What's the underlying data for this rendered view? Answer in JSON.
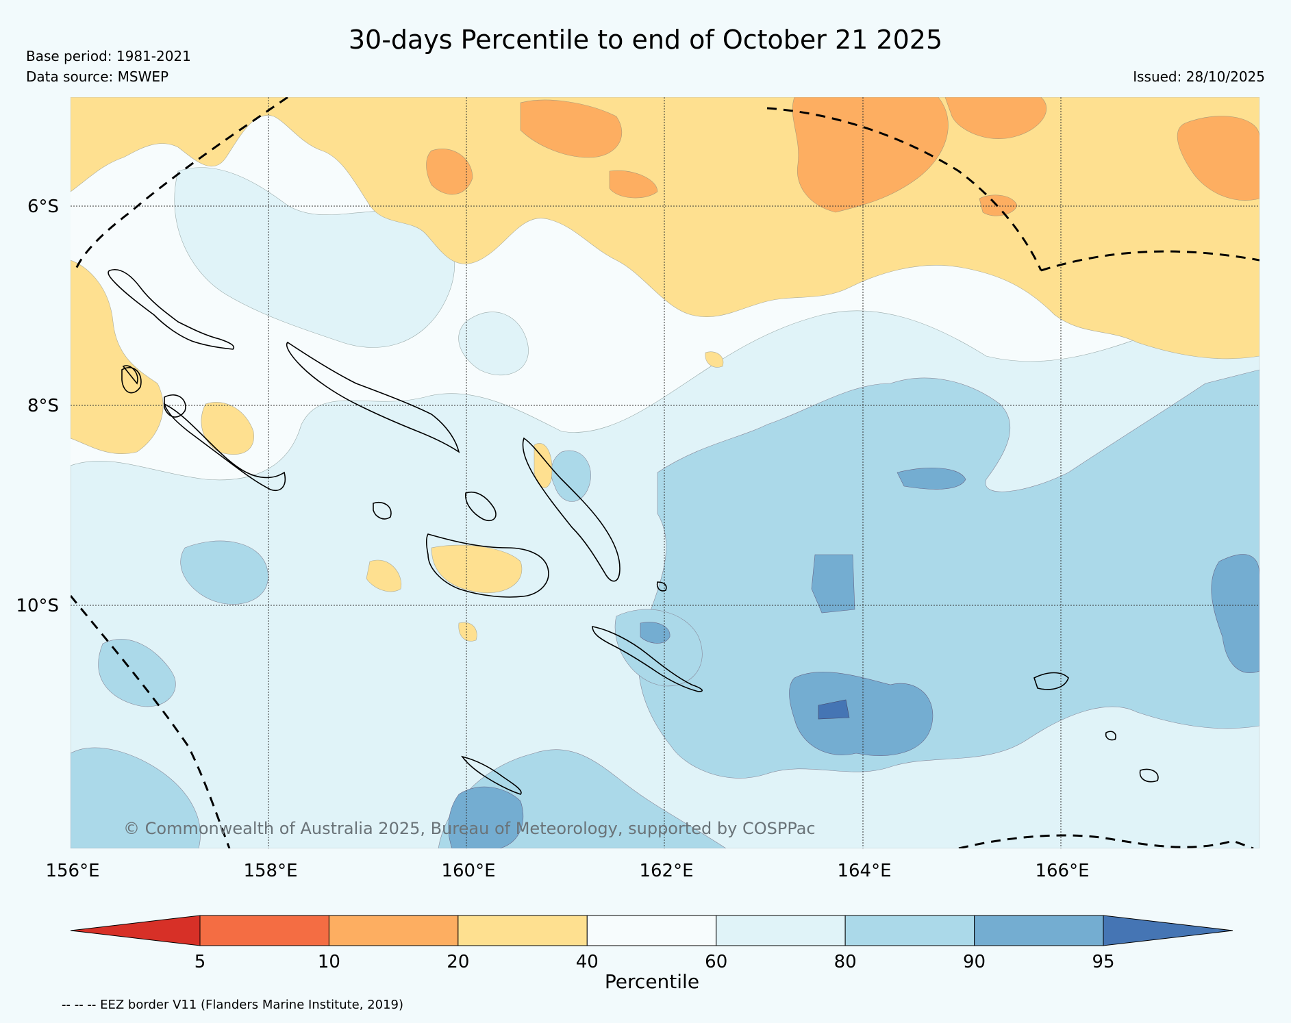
{
  "title": "30-days Percentile to end of October 21 2025",
  "base_period": "Base period: 1981-2021",
  "data_source": "Data source: MSWEP",
  "issued": "Issued: 28/10/2025",
  "copyright": "© Commonwealth of Australia 2025, Bureau of Meteorology, supported by COSPPac",
  "lat_labels": [
    "6°S",
    "8°S",
    "10°S"
  ],
  "lon_labels": [
    "156°E",
    "158°E",
    "160°E",
    "162°E",
    "164°E",
    "166°E"
  ],
  "colorbar": {
    "title": "Percentile",
    "ticks": [
      "5",
      "10",
      "20",
      "40",
      "60",
      "80",
      "90",
      "95"
    ],
    "colors": [
      "#d73027",
      "#f46d43",
      "#fdae61",
      "#fee090",
      "#f7fcfd",
      "#e0f3f8",
      "#abd9e9",
      "#74add1",
      "#4575b4"
    ]
  },
  "eez_note": "-- -- -- EEZ border V11 (Flanders Marine Institute, 2019)",
  "colors": {
    "background": "#f2fafc",
    "land_outline": "#000000",
    "grid": "#333333"
  }
}
